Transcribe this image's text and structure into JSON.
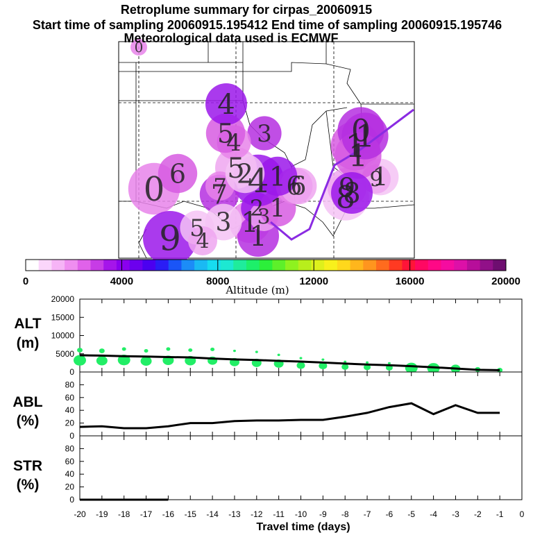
{
  "title": {
    "line1": "Retroplume summary for cirpas_20060915",
    "line2": "Start time of sampling 20060915.195412      End time of sampling 20060915.195746",
    "line3": "Meteorological data used is ECMWF"
  },
  "colors": {
    "trajectory": "#8a2be2",
    "alt_points": "#22ee66",
    "line": "#000000",
    "background": "#ffffff"
  },
  "colorbar": {
    "label": "Altitude (m)",
    "ticks": [
      "0",
      "4000",
      "8000",
      "12000",
      "16000",
      "20000"
    ],
    "colors": [
      "#ffffff",
      "#fbd6fb",
      "#f6b4f6",
      "#ef8ef0",
      "#e062ea",
      "#c73ce6",
      "#a515ea",
      "#8a00ee",
      "#6c00ee",
      "#4b00f0",
      "#2a1df5",
      "#1a55f7",
      "#1c8cf7",
      "#1ab9f3",
      "#17dcf0",
      "#1de8d2",
      "#1fec9c",
      "#1def6a",
      "#2cef3a",
      "#5df02a",
      "#8ef21f",
      "#b8ee1c",
      "#def01c",
      "#f8f01c",
      "#ffd81c",
      "#ffb61c",
      "#ff951e",
      "#ff6b1e",
      "#ff3a22",
      "#ff1438",
      "#ff0862",
      "#ff0886",
      "#f50ca0",
      "#dd10a8",
      "#b70e9a",
      "#911088",
      "#6e0e70"
    ]
  },
  "map": {
    "plume_labels": [
      {
        "t": "0",
        "d": 20,
        "v": 20
      },
      {
        "t": "1",
        "d": 1,
        "v": 40
      },
      {
        "t": "1",
        "d": 2,
        "v": 40
      },
      {
        "t": "2",
        "d": 2,
        "v": 32
      },
      {
        "t": "3",
        "d": 3,
        "v": 30
      },
      {
        "t": "1",
        "d": 4,
        "v": 36
      },
      {
        "t": "4",
        "d": 5,
        "v": 48
      },
      {
        "t": "5",
        "d": 6,
        "v": 40
      },
      {
        "t": "6",
        "d": 6,
        "v": 36
      },
      {
        "t": "7",
        "d": 7,
        "v": 38
      },
      {
        "t": "8",
        "d": 8,
        "v": 44
      },
      {
        "t": "9",
        "d": 8,
        "v": 38
      },
      {
        "t": "1",
        "d": 9,
        "v": 46
      },
      {
        "t": "0",
        "d": 9,
        "v": 44
      },
      {
        "t": "1",
        "d": 10,
        "v": 36
      },
      {
        "t": "9",
        "d": 10,
        "v": 30
      },
      {
        "t": "1",
        "d": 11,
        "v": 44
      },
      {
        "t": "1",
        "d": 11,
        "v": 44
      },
      {
        "t": "8",
        "d": 11,
        "v": 40
      },
      {
        "t": "6",
        "d": 12,
        "v": 36
      },
      {
        "t": "7",
        "d": 12,
        "v": 30
      },
      {
        "t": "3",
        "d": 13,
        "v": 34
      },
      {
        "t": "1",
        "d": 13,
        "v": 38
      },
      {
        "t": "2",
        "d": 13,
        "v": 38
      },
      {
        "t": "4",
        "d": 14,
        "v": 34
      },
      {
        "t": "5",
        "d": 14,
        "v": 38
      },
      {
        "t": "4",
        "d": 15,
        "v": 40
      },
      {
        "t": "3",
        "d": 15,
        "v": 36
      },
      {
        "t": "0",
        "d": 16,
        "v": 48
      },
      {
        "t": "6",
        "d": 16,
        "v": 38
      },
      {
        "t": "9",
        "d": 17,
        "v": 50
      },
      {
        "t": "5",
        "d": 17,
        "v": 34
      },
      {
        "t": "4",
        "d": 17,
        "v": 30
      }
    ]
  },
  "chart_data": [
    {
      "type": "scatter",
      "name": "ALT",
      "ylabel_line1": "ALT",
      "ylabel_line2": "(m)",
      "ylim": [
        0,
        20000
      ],
      "yticks": [
        "0",
        "5000",
        "10000",
        "15000",
        "20000"
      ],
      "xlim": [
        -20,
        0
      ],
      "line": {
        "x": [
          -20,
          -19,
          -18,
          -17,
          -16,
          -15,
          -14,
          -13,
          -12,
          -11,
          -10,
          -9,
          -8,
          -7,
          -6,
          -5,
          -4,
          -3,
          -2,
          -1
        ],
        "y": [
          4600,
          4500,
          4350,
          4250,
          4100,
          4000,
          3700,
          3450,
          3300,
          3050,
          2850,
          2600,
          2300,
          2050,
          1850,
          1600,
          1300,
          950,
          600,
          500
        ]
      },
      "points": [
        {
          "x": -20,
          "y": 3200,
          "s": 9
        },
        {
          "x": -20,
          "y": 6000,
          "s": 4
        },
        {
          "x": -19,
          "y": 3100,
          "s": 8
        },
        {
          "x": -19,
          "y": 5800,
          "s": 4
        },
        {
          "x": -18,
          "y": 3300,
          "s": 9
        },
        {
          "x": -18,
          "y": 6300,
          "s": 3
        },
        {
          "x": -17,
          "y": 3000,
          "s": 8
        },
        {
          "x": -17,
          "y": 5800,
          "s": 3
        },
        {
          "x": -16,
          "y": 3200,
          "s": 8
        },
        {
          "x": -16,
          "y": 6300,
          "s": 3
        },
        {
          "x": -15,
          "y": 3100,
          "s": 8
        },
        {
          "x": -15,
          "y": 6000,
          "s": 3
        },
        {
          "x": -14,
          "y": 3100,
          "s": 7
        },
        {
          "x": -14,
          "y": 6200,
          "s": 3
        },
        {
          "x": -13,
          "y": 2700,
          "s": 7
        },
        {
          "x": -13,
          "y": 5800,
          "s": 2
        },
        {
          "x": -12,
          "y": 2500,
          "s": 7
        },
        {
          "x": -12,
          "y": 5500,
          "s": 2
        },
        {
          "x": -11,
          "y": 2300,
          "s": 7
        },
        {
          "x": -11,
          "y": 4700,
          "s": 2
        },
        {
          "x": -10,
          "y": 1800,
          "s": 6
        },
        {
          "x": -10,
          "y": 3800,
          "s": 2
        },
        {
          "x": -9,
          "y": 1700,
          "s": 6
        },
        {
          "x": -9,
          "y": 3400,
          "s": 2
        },
        {
          "x": -8,
          "y": 1400,
          "s": 5
        },
        {
          "x": -8,
          "y": 2800,
          "s": 2
        },
        {
          "x": -7,
          "y": 1300,
          "s": 5
        },
        {
          "x": -7,
          "y": 2600,
          "s": 2
        },
        {
          "x": -6,
          "y": 1200,
          "s": 5
        },
        {
          "x": -6,
          "y": 2400,
          "s": 2
        },
        {
          "x": -5,
          "y": 1100,
          "s": 9
        },
        {
          "x": -4,
          "y": 1000,
          "s": 9
        },
        {
          "x": -3,
          "y": 900,
          "s": 7
        },
        {
          "x": -2,
          "y": 700,
          "s": 4
        },
        {
          "x": -1,
          "y": 500,
          "s": 4
        }
      ]
    },
    {
      "type": "line",
      "name": "ABL",
      "ylabel_line1": "ABL",
      "ylabel_line2": "(%)",
      "ylim": [
        0,
        100
      ],
      "yticks": [
        "0",
        "20",
        "40",
        "60",
        "80"
      ],
      "xlim": [
        -20,
        0
      ],
      "x": [
        -20,
        -19,
        -18,
        -17,
        -16,
        -15,
        -14,
        -13,
        -12,
        -11,
        -10,
        -9,
        -8,
        -7,
        -6,
        -5,
        -4,
        -3,
        -2,
        -1
      ],
      "y": [
        14,
        15,
        12,
        12,
        15,
        20,
        20,
        23,
        24,
        24,
        25,
        25,
        30,
        36,
        45,
        51,
        34,
        48,
        36,
        36
      ]
    },
    {
      "type": "line",
      "name": "STR",
      "ylabel_line1": "STR",
      "ylabel_line2": "(%)",
      "ylim": [
        0,
        100
      ],
      "yticks": [
        "0",
        "20",
        "40",
        "60",
        "80"
      ],
      "xlim": [
        -20,
        0
      ],
      "x": [
        -20,
        -19,
        -18,
        -17,
        -16
      ],
      "y": [
        0,
        0,
        0,
        0,
        0
      ]
    }
  ],
  "x_axis": {
    "label": "Travel time (days)",
    "ticks": [
      "-20",
      "-19",
      "-18",
      "-17",
      "-16",
      "-15",
      "-14",
      "-13",
      "-12",
      "-11",
      "-10",
      "-9",
      "-8",
      "-7",
      "-6",
      "-5",
      "-4",
      "-3",
      "-2",
      "-1",
      "0"
    ]
  }
}
